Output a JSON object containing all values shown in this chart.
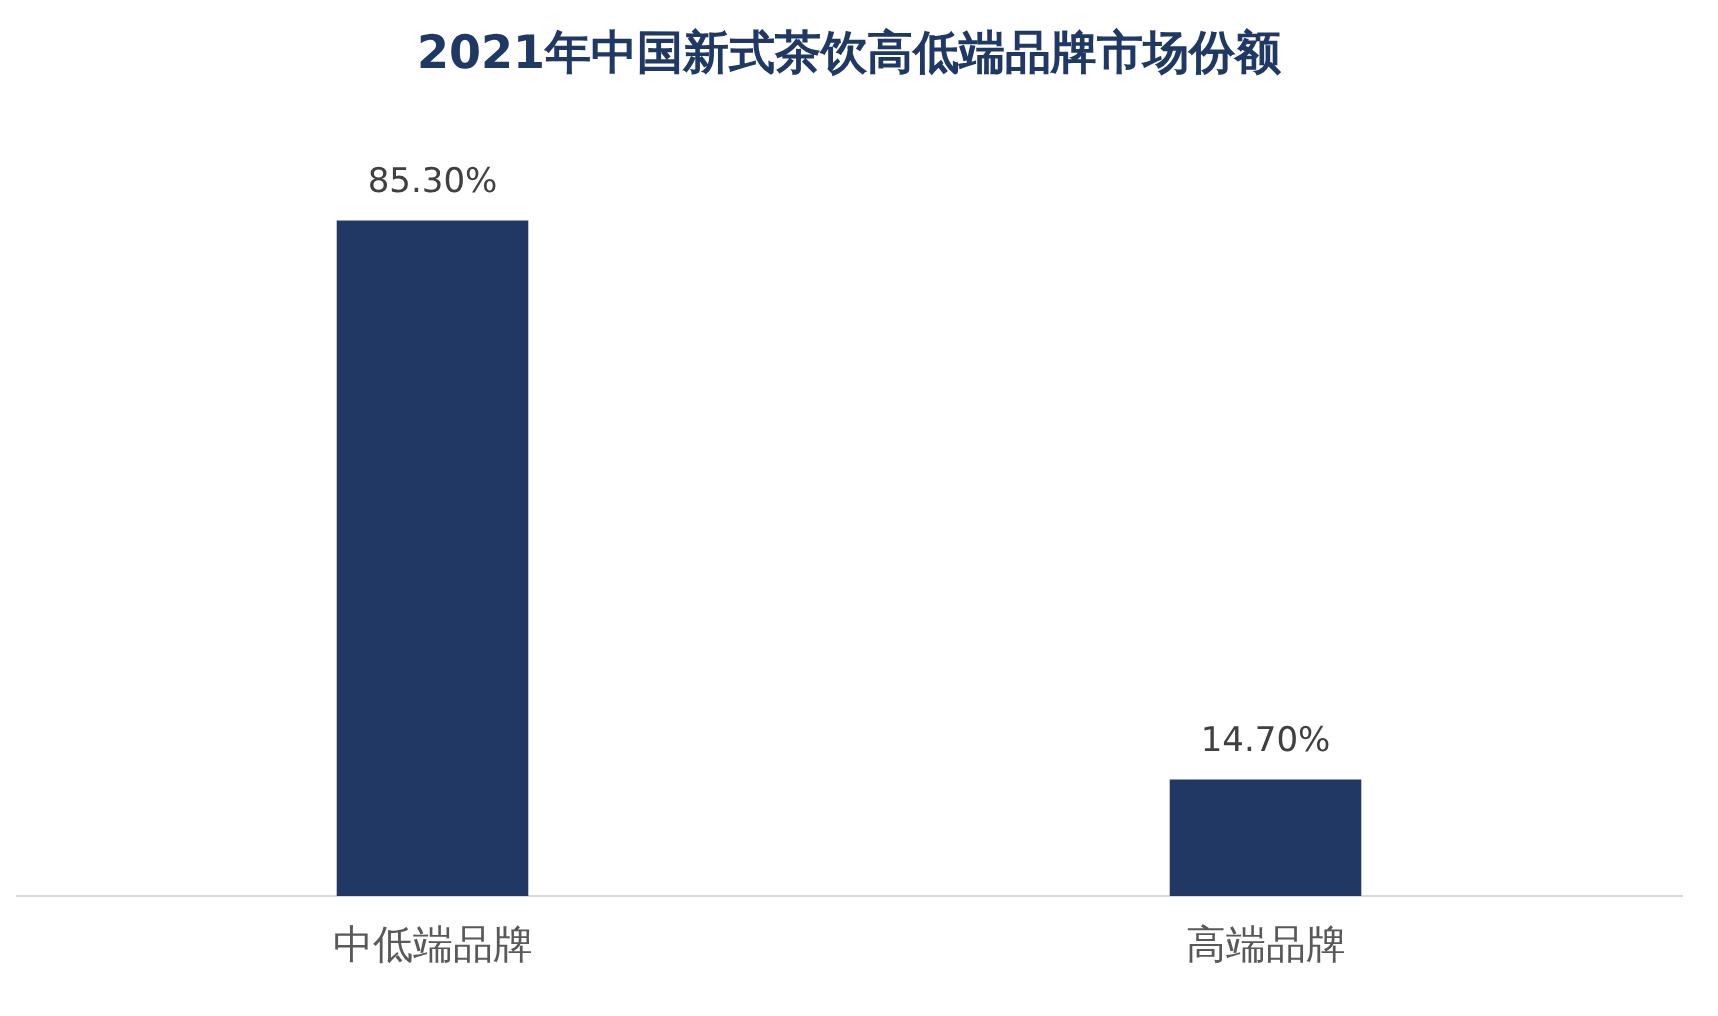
{
  "chart_data": {
    "type": "bar",
    "title": "2021年中国新式茶饮高低端品牌市场份额",
    "categories": [
      "中低端品牌",
      "高端品牌"
    ],
    "values": [
      85.3,
      14.7
    ],
    "value_labels": [
      "85.30%",
      "14.70%"
    ],
    "color": "#213864",
    "grid": false,
    "legend": false
  }
}
